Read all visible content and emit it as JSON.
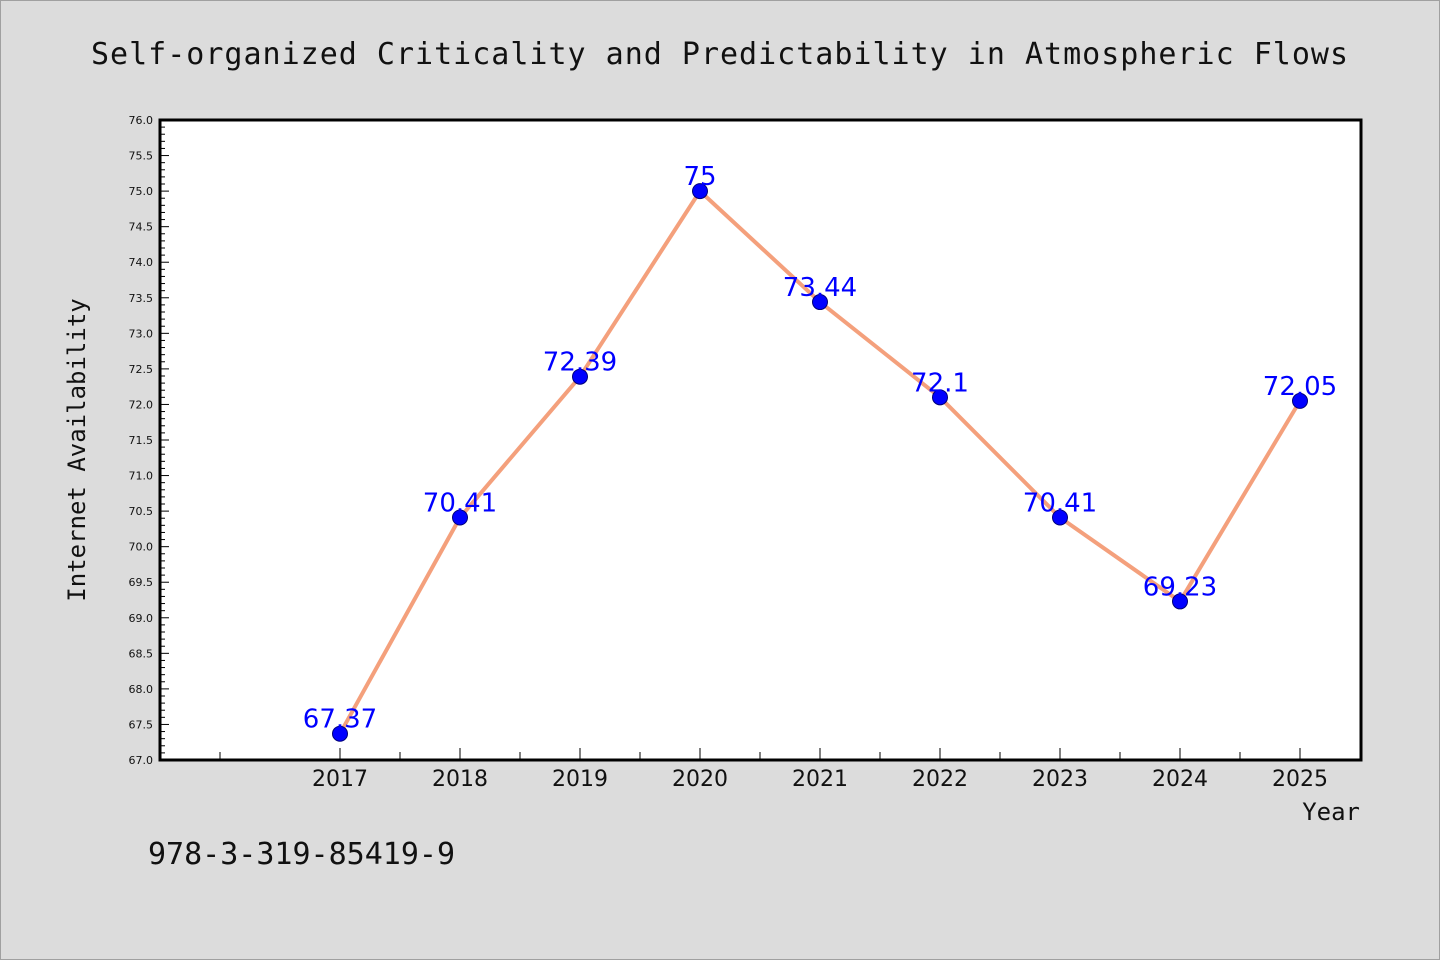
{
  "chart_data": {
    "type": "line",
    "title": "Self-organized Criticality and Predictability in Atmospheric Flows",
    "xlabel": "Year",
    "ylabel": "Internet Availability",
    "x": [
      "2017",
      "2018",
      "2019",
      "2020",
      "2021",
      "2022",
      "2023",
      "2024",
      "2025"
    ],
    "series": [
      {
        "values": [
          67.37,
          70.41,
          72.39,
          75,
          73.44,
          72.1,
          70.41,
          69.23,
          72.05
        ],
        "data_labels": [
          "67.37",
          "70.41",
          "72.39",
          "75",
          "73.44",
          "72.1",
          "70.41",
          "69.23",
          "72.05"
        ],
        "line_color": "#f4a07c",
        "marker_color": "#0000ff"
      }
    ],
    "ylim": [
      67.0,
      76.0
    ],
    "yticks": [
      "67.0",
      "67.5",
      "68.0",
      "68.5",
      "69.0",
      "69.5",
      "70.0",
      "70.5",
      "71.0",
      "71.5",
      "72.0",
      "72.5",
      "73.0",
      "73.5",
      "74.0",
      "74.5",
      "75.0",
      "75.5",
      "76.0"
    ],
    "grid": false,
    "legend": "none"
  },
  "footer": {
    "isbn": "978-3-319-85419-9"
  },
  "colors": {
    "background": "#dcdcdc",
    "plot_background": "#ffffff",
    "label_color": "#0000ff"
  }
}
